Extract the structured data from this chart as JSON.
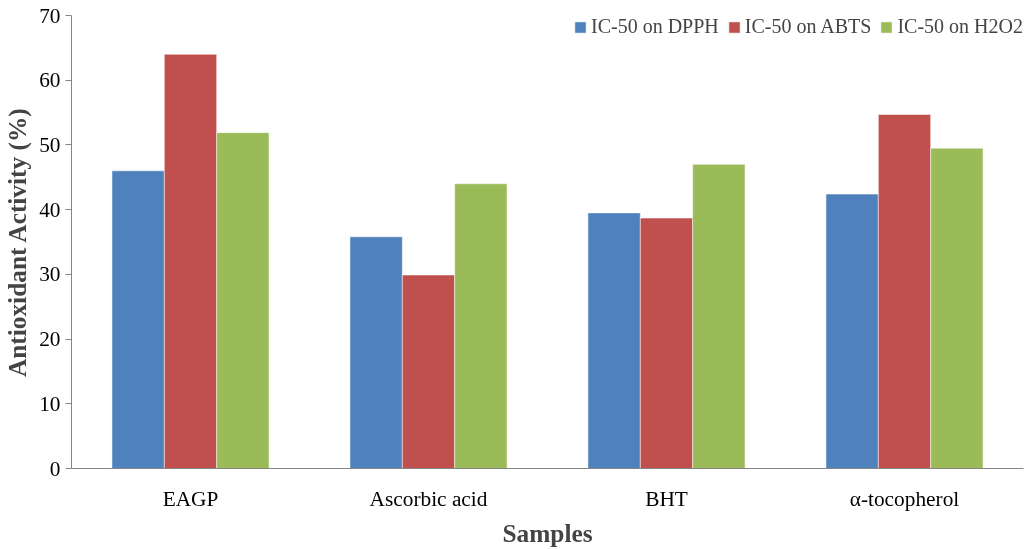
{
  "chart_data": {
    "type": "bar",
    "xlabel": "Samples",
    "ylabel": "Antioxidant Activity (%)",
    "categories": [
      "EAGP",
      "Ascorbic acid",
      "BHT",
      "α-tocopherol"
    ],
    "series": [
      {
        "name": "IC-50 on DPPH",
        "color": "#4f81bd",
        "values": [
          46.0,
          35.8,
          39.5,
          42.4
        ]
      },
      {
        "name": "IC-50 on ABTS",
        "color": "#c0504d",
        "values": [
          64.0,
          29.9,
          38.7,
          54.7
        ]
      },
      {
        "name": "IC-50 on H2O2",
        "color": "#9bbb59",
        "values": [
          51.9,
          44.0,
          47.0,
          49.5
        ]
      }
    ],
    "ylim": [
      0,
      70
    ],
    "yticks": [
      0,
      10,
      20,
      30,
      40,
      50,
      60,
      70
    ],
    "grid": false,
    "legend": "top right"
  }
}
